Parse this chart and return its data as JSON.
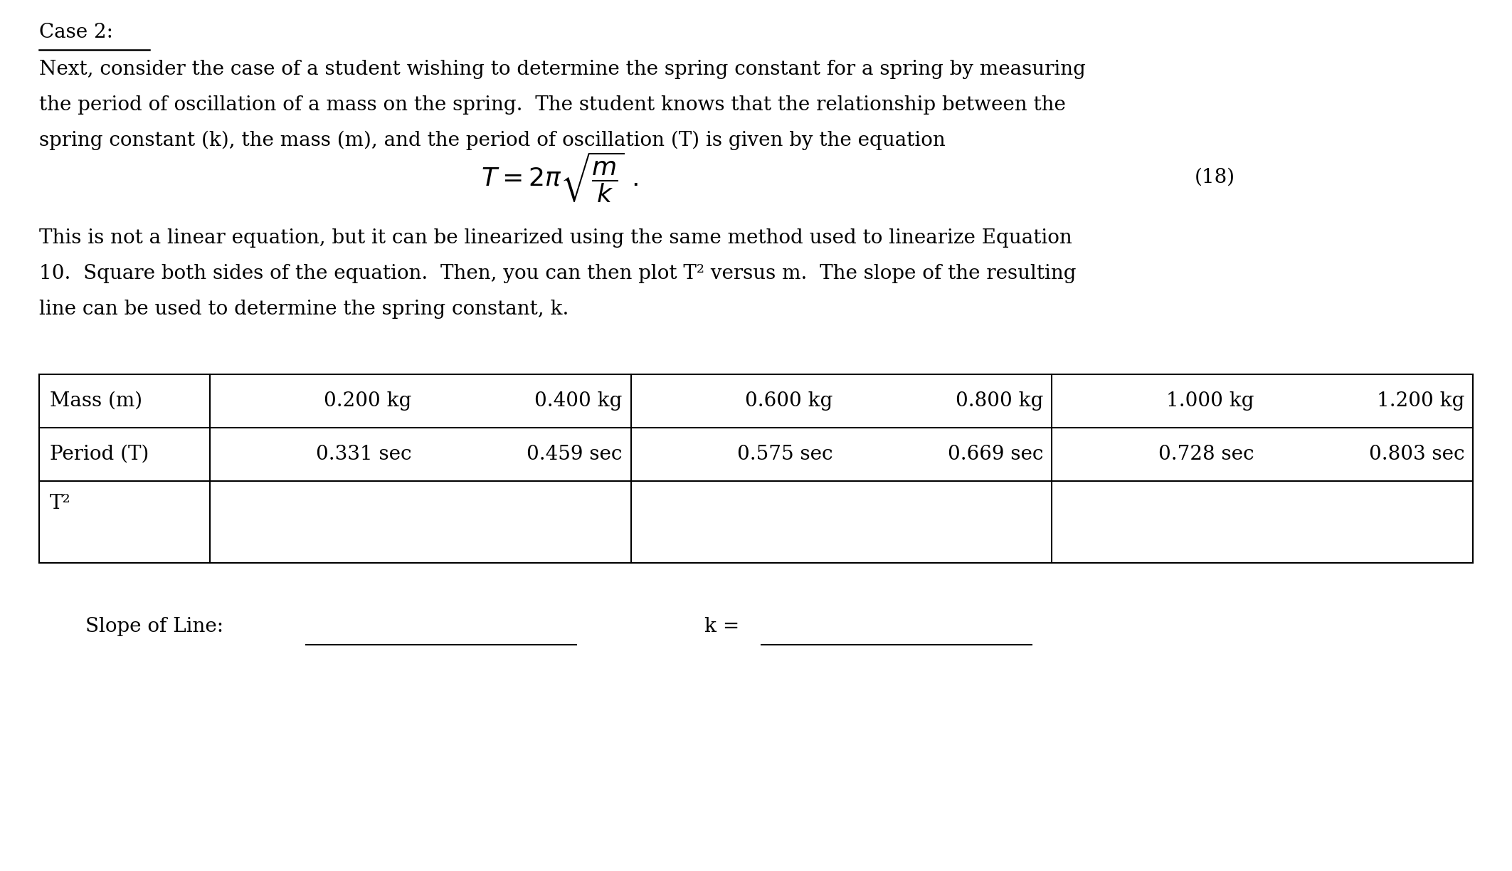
{
  "background_color": "#ffffff",
  "title_text": "Case 2:",
  "paragraph1": "Next, consider the case of a student wishing to determine the spring constant for a spring by measuring\nthe period of oscillation of a mass on the spring.  The student knows that the relationship between the\nspring constant (k), the mass (m), and the period of oscillation (T) is given by the equation",
  "equation_number": "(18)",
  "paragraph2": "This is not a linear equation, but it can be linearized using the same method used to linearize Equation\n10.  Square both sides of the equation.  Then, you can then plot T² versus m.  The slope of the resulting\nline can be used to determine the spring constant, k.",
  "table_col0_header": "Mass (m)",
  "table_mass_values": [
    "0.200 kg",
    "0.400 kg",
    "0.600 kg",
    "0.800 kg",
    "1.000 kg",
    "1.200 kg"
  ],
  "table_period_label": "Period (T)",
  "table_period_values": [
    "0.331 sec",
    "0.459 sec",
    "0.575 sec",
    "0.669 sec",
    "0.728 sec",
    "0.803 sec"
  ],
  "table_t2_label": "T²",
  "slope_label": "Slope of Line:",
  "k_label": "k =",
  "font_size_body": 20,
  "font_size_eq": 26,
  "font_family": "DejaVu Serif"
}
